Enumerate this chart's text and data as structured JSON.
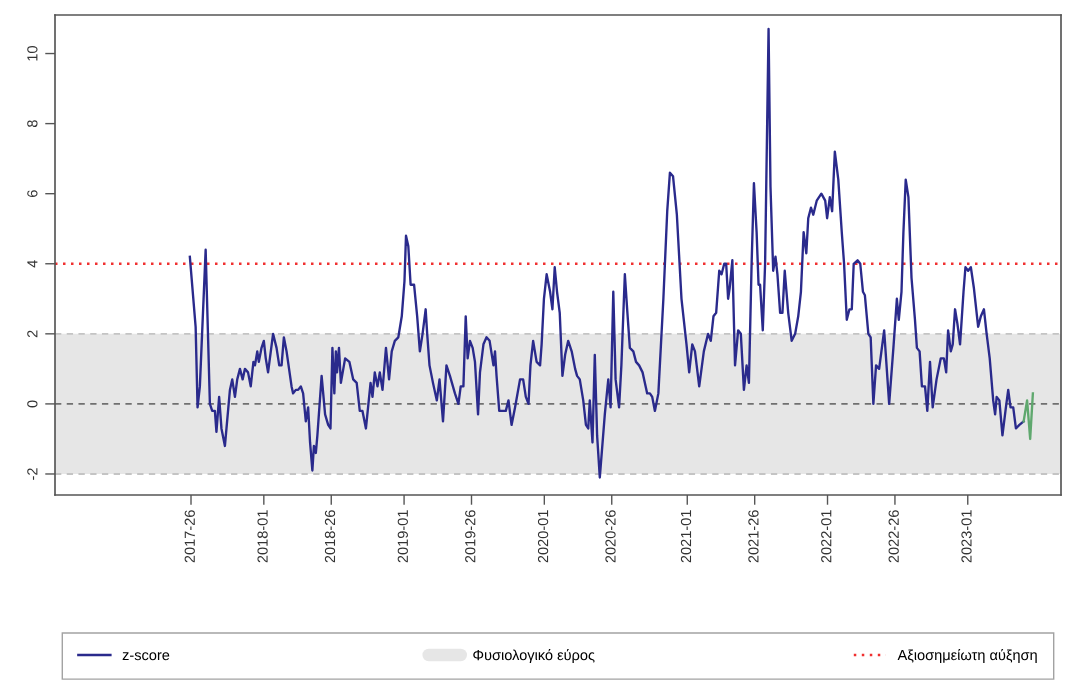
{
  "chart_data": {
    "type": "line",
    "xlim": [
      "2016-07-11",
      "2023-09-04"
    ],
    "xticks": [
      {
        "value": "2017-06-29",
        "label": "2017-26"
      },
      {
        "value": "2018-01-04",
        "label": "2018-01"
      },
      {
        "value": "2018-06-28",
        "label": "2018-26"
      },
      {
        "value": "2019-01-03",
        "label": "2019-01"
      },
      {
        "value": "2019-06-27",
        "label": "2019-26"
      },
      {
        "value": "2020-01-02",
        "label": "2020-01"
      },
      {
        "value": "2020-06-25",
        "label": "2020-26"
      },
      {
        "value": "2021-01-07",
        "label": "2021-01"
      },
      {
        "value": "2021-07-01",
        "label": "2021-26"
      },
      {
        "value": "2022-01-06",
        "label": "2022-01"
      },
      {
        "value": "2022-06-30",
        "label": "2022-26"
      },
      {
        "value": "2023-01-05",
        "label": "2023-01"
      }
    ],
    "ylim": [
      -2.6,
      11.1
    ],
    "yticks": [
      -2,
      0,
      2,
      4,
      6,
      8,
      10
    ],
    "series": [
      {
        "name": "z-score",
        "color": "#2a2a8c",
        "x": [
          "2017-06-26",
          "2017-07-11",
          "2017-07-16",
          "2017-07-22",
          "2017-08-06",
          "2017-08-17",
          "2017-08-23",
          "2017-08-30",
          "2017-09-03",
          "2017-09-10",
          "2017-09-16",
          "2017-09-25",
          "2017-10-08",
          "2017-10-14",
          "2017-10-21",
          "2017-10-27",
          "2017-11-03",
          "2017-11-10",
          "2017-11-16",
          "2017-11-24",
          "2017-12-01",
          "2017-12-08",
          "2017-12-12",
          "2017-12-18",
          "2017-12-22",
          "2017-12-29",
          "2018-01-04",
          "2018-01-09",
          "2018-01-15",
          "2018-01-28",
          "2018-02-06",
          "2018-02-13",
          "2018-02-19",
          "2018-02-25",
          "2018-03-04",
          "2018-03-17",
          "2018-03-21",
          "2018-03-28",
          "2018-04-03",
          "2018-04-10",
          "2018-04-16",
          "2018-04-23",
          "2018-04-29",
          "2018-05-04",
          "2018-05-10",
          "2018-05-14",
          "2018-05-19",
          "2018-05-23",
          "2018-06-03",
          "2018-06-12",
          "2018-06-20",
          "2018-06-26",
          "2018-07-01",
          "2018-07-06",
          "2018-07-10",
          "2018-07-13",
          "2018-07-18",
          "2018-07-23",
          "2018-08-03",
          "2018-08-14",
          "2018-08-24",
          "2018-09-02",
          "2018-09-10",
          "2018-09-17",
          "2018-09-26",
          "2018-10-08",
          "2018-10-13",
          "2018-10-19",
          "2018-10-26",
          "2018-11-01",
          "2018-11-08",
          "2018-11-17",
          "2018-11-25",
          "2018-12-02",
          "2018-12-10",
          "2018-12-19",
          "2018-12-28",
          "2019-01-04",
          "2019-01-08",
          "2019-01-14",
          "2019-01-20",
          "2019-01-29",
          "2019-02-06",
          "2019-02-13",
          "2019-02-20",
          "2019-02-28",
          "2019-03-04",
          "2019-03-10",
          "2019-03-19",
          "2019-03-29",
          "2019-04-05",
          "2019-04-14",
          "2019-04-23",
          "2019-05-02",
          "2019-05-15",
          "2019-05-24",
          "2019-05-30",
          "2019-06-06",
          "2019-06-12",
          "2019-06-17",
          "2019-06-23",
          "2019-06-30",
          "2019-07-06",
          "2019-07-14",
          "2019-07-19",
          "2019-07-28",
          "2019-08-05",
          "2019-08-13",
          "2019-08-23",
          "2019-08-27",
          "2019-08-31",
          "2019-09-07",
          "2019-09-15",
          "2019-09-24",
          "2019-10-01",
          "2019-10-09",
          "2019-10-18",
          "2019-10-31",
          "2019-11-08",
          "2019-11-15",
          "2019-11-22",
          "2019-11-27",
          "2019-12-04",
          "2019-12-13",
          "2019-12-22",
          "2019-12-26",
          "2020-01-01",
          "2020-01-08",
          "2020-01-17",
          "2020-01-23",
          "2020-01-29",
          "2020-02-04",
          "2020-02-11",
          "2020-02-18",
          "2020-02-25",
          "2020-03-04",
          "2020-03-13",
          "2020-03-22",
          "2020-03-27",
          "2020-04-03",
          "2020-04-12",
          "2020-04-19",
          "2020-04-25",
          "2020-04-29",
          "2020-05-06",
          "2020-05-12",
          "2020-05-18",
          "2020-05-25",
          "2020-06-07",
          "2020-06-16",
          "2020-06-22",
          "2020-06-29",
          "2020-07-05",
          "2020-07-14",
          "2020-07-20",
          "2020-07-29",
          "2020-08-04",
          "2020-08-11",
          "2020-08-20",
          "2020-08-27",
          "2020-09-04",
          "2020-09-13",
          "2020-09-19",
          "2020-09-25",
          "2020-10-02",
          "2020-10-08",
          "2020-10-15",
          "2020-10-24",
          "2020-11-06",
          "2020-11-16",
          "2020-11-23",
          "2020-12-01",
          "2020-12-11",
          "2020-12-23",
          "2021-01-05",
          "2021-01-12",
          "2021-01-20",
          "2021-01-27",
          "2021-02-07",
          "2021-02-19",
          "2021-03-02",
          "2021-03-09",
          "2021-03-16",
          "2021-03-23",
          "2021-03-31",
          "2021-04-06",
          "2021-04-13",
          "2021-04-18",
          "2021-04-23",
          "2021-04-27",
          "2021-05-04",
          "2021-05-11",
          "2021-05-19",
          "2021-05-26",
          "2021-06-03",
          "2021-06-10",
          "2021-06-16",
          "2021-06-23",
          "2021-06-29",
          "2021-07-06",
          "2021-07-11",
          "2021-07-15",
          "2021-07-22",
          "2021-07-28",
          "2021-08-06",
          "2021-08-11",
          "2021-08-18",
          "2021-08-24",
          "2021-08-29",
          "2021-09-05",
          "2021-09-11",
          "2021-09-17",
          "2021-09-26",
          "2021-10-05",
          "2021-10-14",
          "2021-10-22",
          "2021-10-29",
          "2021-11-05",
          "2021-11-12",
          "2021-11-17",
          "2021-11-24",
          "2021-11-30",
          "2021-12-09",
          "2021-12-21",
          "2021-12-31",
          "2022-01-05",
          "2022-01-12",
          "2022-01-18",
          "2022-01-25",
          "2022-02-03",
          "2022-02-12",
          "2022-02-18",
          "2022-02-25",
          "2022-03-04",
          "2022-03-10",
          "2022-03-15",
          "2022-03-25",
          "2022-04-01",
          "2022-04-08",
          "2022-04-13",
          "2022-04-22",
          "2022-04-28",
          "2022-05-05",
          "2022-05-12",
          "2022-05-20",
          "2022-06-02",
          "2022-06-15",
          "2022-06-26",
          "2022-07-05",
          "2022-07-10",
          "2022-07-17",
          "2022-07-22",
          "2022-07-28",
          "2022-08-04",
          "2022-08-12",
          "2022-08-21",
          "2022-08-26",
          "2022-09-02",
          "2022-09-08",
          "2022-09-16",
          "2022-09-22",
          "2022-09-29",
          "2022-10-06",
          "2022-10-16",
          "2022-10-27",
          "2022-11-04",
          "2022-11-10",
          "2022-11-15",
          "2022-11-22",
          "2022-11-27",
          "2022-12-03",
          "2022-12-09",
          "2022-12-16",
          "2022-12-25",
          "2022-12-30",
          "2023-01-06",
          "2023-01-13",
          "2023-01-21",
          "2023-02-01",
          "2023-02-08",
          "2023-02-16",
          "2023-02-23",
          "2023-03-03",
          "2023-03-12",
          "2023-03-17",
          "2023-03-21",
          "2023-03-28",
          "2023-04-05",
          "2023-04-14",
          "2023-04-20",
          "2023-04-26",
          "2023-05-03",
          "2023-05-10",
          "2023-05-19",
          "2023-05-30"
        ],
        "values": [
          4.2,
          2.2,
          -0.1,
          0.5,
          4.4,
          0.0,
          -0.2,
          -0.2,
          -0.8,
          0.2,
          -0.7,
          -1.2,
          0.4,
          0.7,
          0.2,
          0.7,
          1.0,
          0.7,
          1.0,
          0.9,
          0.5,
          1.2,
          1.1,
          1.5,
          1.2,
          1.6,
          1.8,
          1.3,
          0.9,
          2.0,
          1.6,
          1.1,
          1.1,
          1.9,
          1.5,
          0.5,
          0.3,
          0.4,
          0.4,
          0.5,
          0.3,
          -0.5,
          -0.1,
          -1.1,
          -1.9,
          -1.2,
          -1.4,
          -0.9,
          0.8,
          -0.3,
          -0.6,
          -0.7,
          1.6,
          0.3,
          1.5,
          0.9,
          1.6,
          0.6,
          1.3,
          1.2,
          0.7,
          0.6,
          -0.2,
          -0.2,
          -0.7,
          0.6,
          0.2,
          0.9,
          0.5,
          0.9,
          0.4,
          1.6,
          0.7,
          1.5,
          1.8,
          1.9,
          2.5,
          3.5,
          4.8,
          4.5,
          3.4,
          3.4,
          2.5,
          1.5,
          2.0,
          2.7,
          2.0,
          1.1,
          0.6,
          0.1,
          0.7,
          -0.5,
          1.1,
          0.8,
          0.3,
          0.0,
          0.5,
          0.5,
          2.5,
          1.3,
          1.8,
          1.6,
          1.2,
          -0.3,
          0.9,
          1.7,
          1.9,
          1.8,
          1.1,
          1.5,
          0.8,
          -0.2,
          -0.2,
          -0.2,
          0.1,
          -0.6,
          -0.1,
          0.7,
          0.7,
          0.2,
          0.0,
          1.1,
          1.8,
          1.2,
          1.1,
          1.7,
          3.0,
          3.7,
          3.2,
          2.7,
          3.9,
          3.2,
          2.6,
          0.8,
          1.4,
          1.8,
          1.5,
          1.0,
          0.8,
          0.7,
          0.1,
          -0.6,
          -0.7,
          0.1,
          -1.1,
          1.4,
          -0.9,
          -2.1,
          -0.3,
          0.7,
          -0.1,
          3.2,
          0.7,
          -0.1,
          1.1,
          3.7,
          2.7,
          1.6,
          1.5,
          1.2,
          1.1,
          0.9,
          0.6,
          0.3,
          0.3,
          0.2,
          -0.2,
          0.3,
          3.0,
          5.5,
          6.6,
          6.5,
          5.4,
          3.0,
          1.7,
          0.9,
          1.7,
          1.5,
          0.5,
          1.5,
          2.0,
          1.8,
          2.5,
          2.6,
          3.8,
          3.7,
          4.0,
          4.0,
          3.0,
          3.3,
          4.1,
          1.1,
          2.1,
          2.0,
          0.4,
          1.1,
          0.6,
          4.0,
          6.3,
          4.9,
          3.4,
          3.4,
          2.1,
          4.0,
          10.7,
          6.2,
          3.8,
          4.2,
          3.7,
          2.6,
          2.6,
          3.8,
          2.6,
          1.8,
          2.0,
          2.5,
          3.2,
          4.9,
          4.3,
          5.3,
          5.6,
          5.4,
          5.8,
          6.0,
          5.8,
          5.3,
          5.9,
          5.5,
          7.2,
          6.4,
          4.9,
          4.0,
          2.4,
          2.7,
          2.7,
          4.0,
          4.1,
          4.0,
          3.2,
          3.1,
          2.0,
          1.9,
          0.0,
          1.1,
          1.0,
          2.1,
          0.0,
          1.6,
          3.0,
          2.4,
          3.2,
          4.9,
          6.4,
          5.9,
          3.6,
          2.4,
          1.6,
          1.5,
          0.5,
          0.5,
          -0.2,
          1.2,
          -0.1,
          0.7,
          1.3,
          1.3,
          0.9,
          2.1,
          1.5,
          1.7,
          2.7,
          2.3,
          1.7,
          3.2,
          3.9,
          3.8,
          3.9,
          3.3,
          2.2,
          2.5,
          2.7,
          2.0,
          1.3,
          0.1,
          -0.3,
          0.2,
          0.1,
          -0.9,
          -0.1,
          0.4,
          -0.1,
          -0.1,
          -0.7,
          -0.6,
          -0.5
        ]
      },
      {
        "color": "#5fa86e",
        "x": [
          "2023-05-30",
          "2023-06-08",
          "2023-06-16",
          "2023-06-23"
        ],
        "values": [
          -0.5,
          0.1,
          -1.0,
          0.3
        ]
      }
    ],
    "bands": [
      {
        "axis": "y",
        "from": -2,
        "to": 2,
        "label": "Φυσιολογικό εύρος",
        "color": "#e6e6e6"
      }
    ],
    "ref_lines": [
      {
        "axis": "y",
        "value": 0,
        "color": "#707070",
        "line_style": "dashed"
      },
      {
        "axis": "y",
        "value": 2,
        "color": "#c4c4c4",
        "line_style": "dashed"
      },
      {
        "axis": "y",
        "value": -2,
        "color": "#c4c4c4",
        "line_style": "dashed"
      },
      {
        "axis": "y",
        "value": 4,
        "label": "Αξιοσημείωτη αύξηση",
        "color": "#f03030",
        "line_style": "dotted"
      }
    ],
    "legend": "bottom"
  }
}
